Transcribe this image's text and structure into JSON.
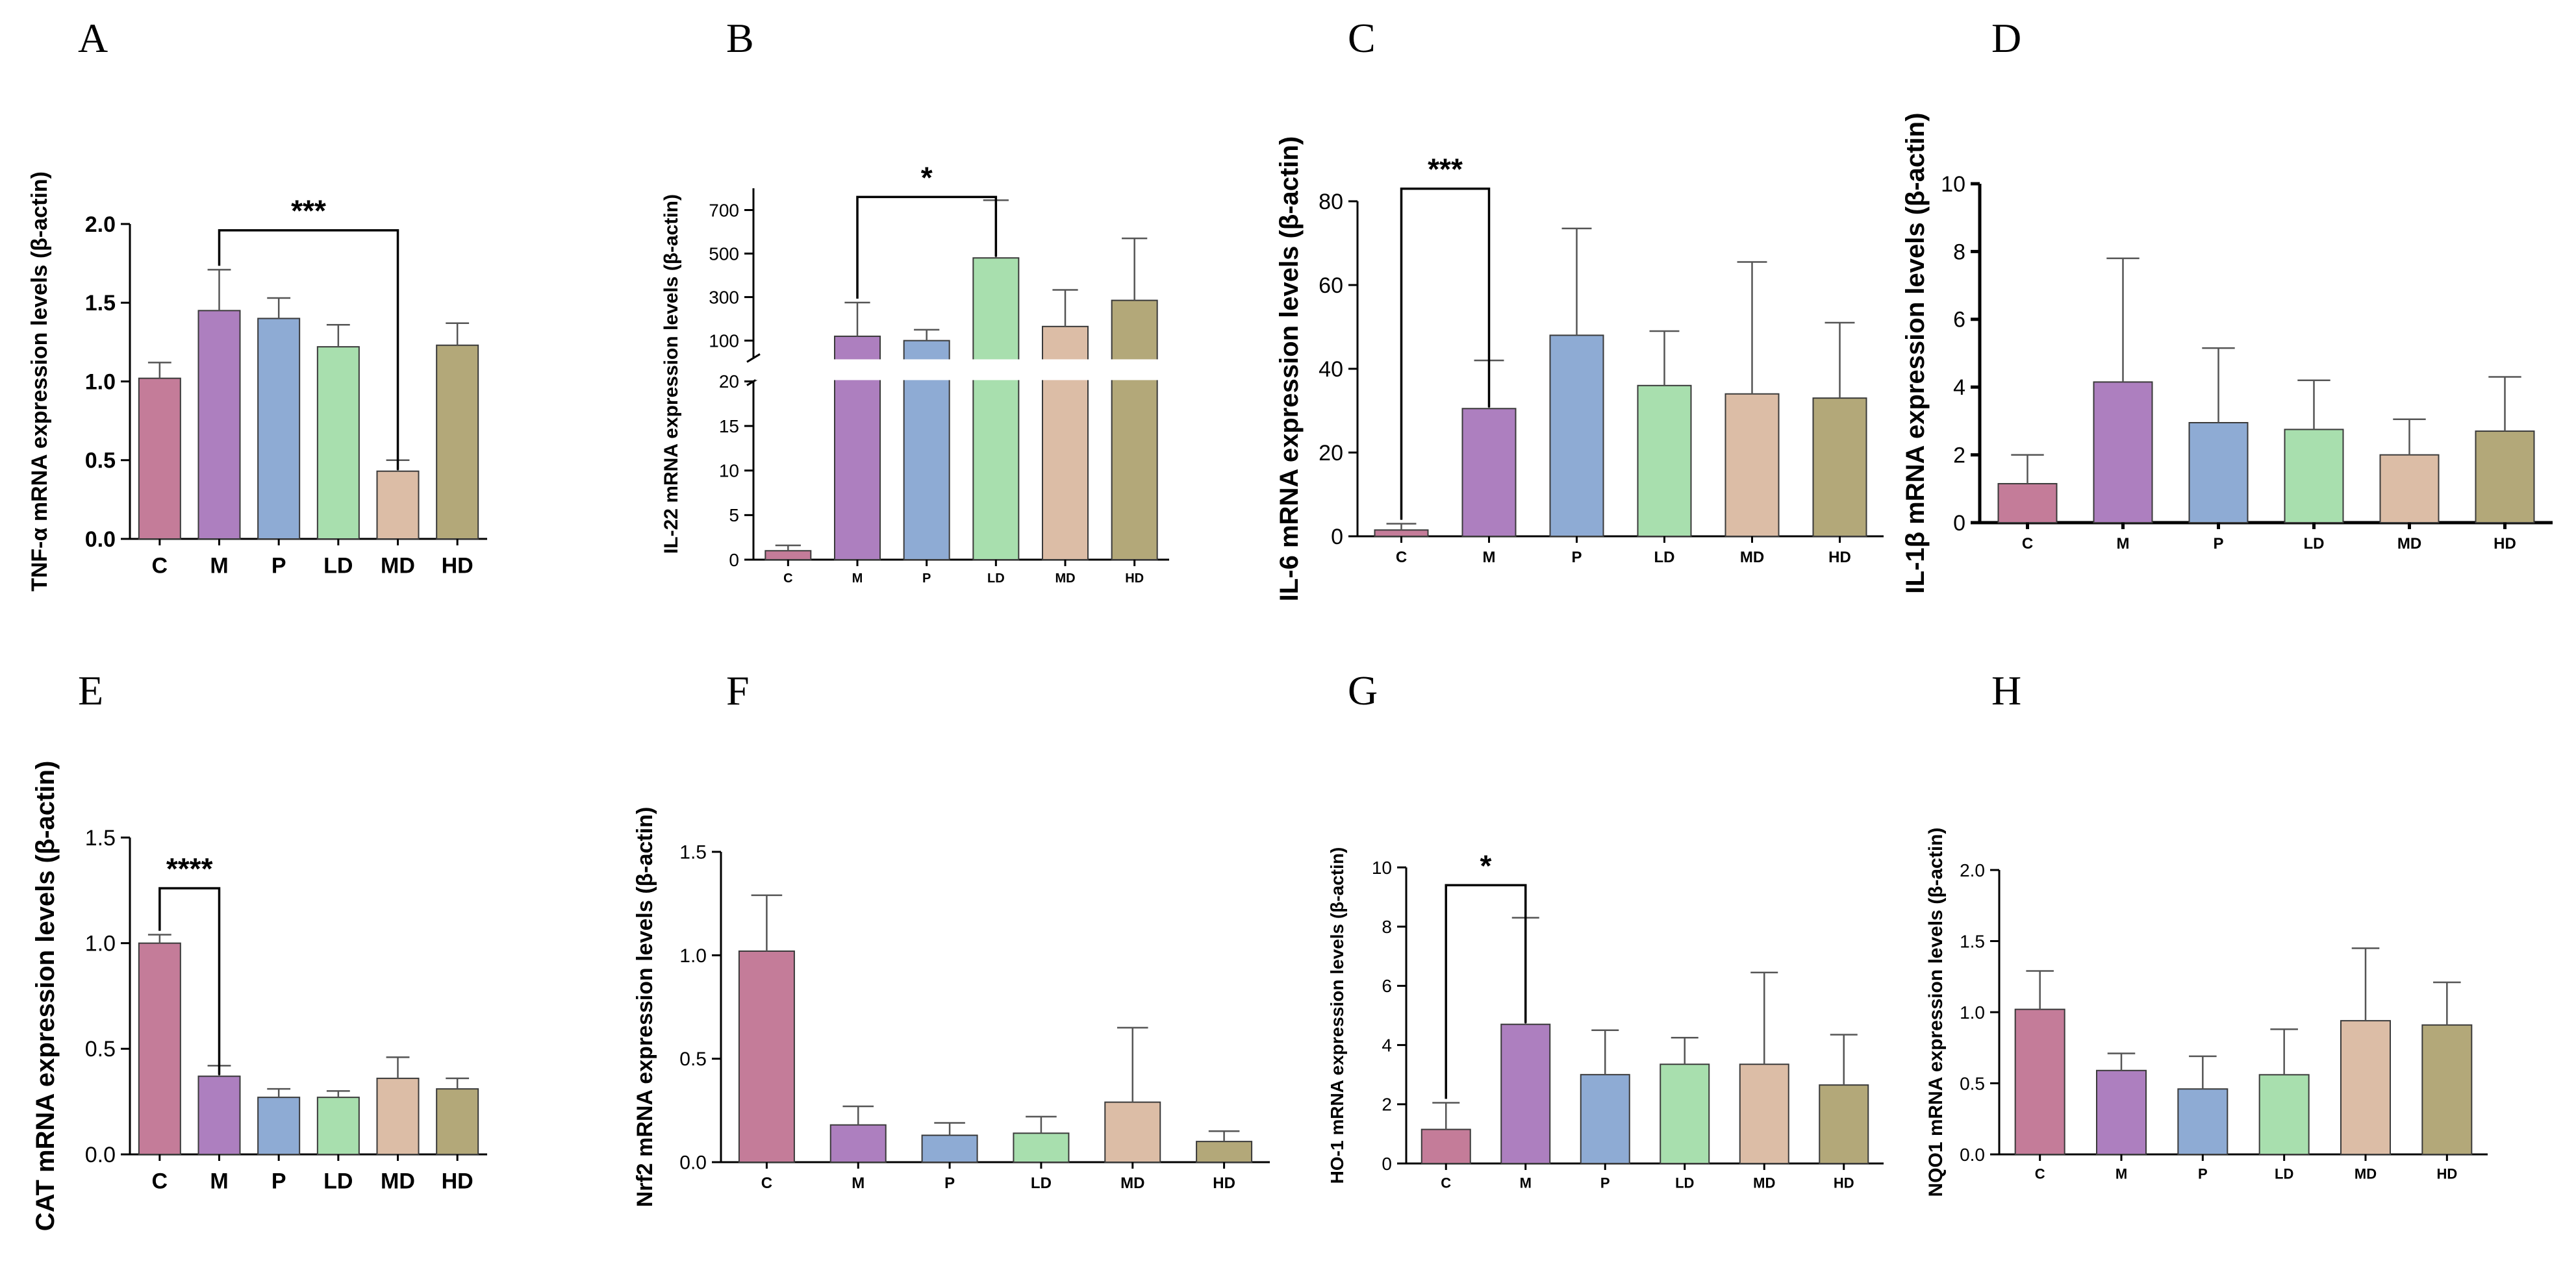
{
  "chart_data": [
    {
      "panel": "A",
      "type": "bar",
      "ylabel": "TNF-α mRNA expression levels (β-actin)",
      "categories": [
        "C",
        "M",
        "P",
        "LD",
        "MD",
        "HD"
      ],
      "values": [
        1.02,
        1.45,
        1.4,
        1.22,
        0.43,
        1.23
      ],
      "errors": [
        0.1,
        0.26,
        0.13,
        0.14,
        0.07,
        0.14
      ],
      "ylim": [
        0,
        2.0
      ],
      "yticks": [
        "0.0",
        "0.5",
        "1.0",
        "1.5",
        "2.0"
      ],
      "significance": {
        "from": 1,
        "to": 4,
        "label": "***",
        "level": 1.96
      }
    },
    {
      "panel": "B",
      "type": "bar",
      "ylabel": "IL-22 mRNA expression levels (β-actin)",
      "categories": [
        "C",
        "M",
        "P",
        "LD",
        "MD",
        "HD"
      ],
      "values": [
        1.0,
        120,
        100,
        480,
        165,
        285
      ],
      "errors": [
        0.6,
        155,
        50,
        265,
        168,
        285
      ],
      "broken_axis": {
        "lower": [
          0,
          20
        ],
        "upper": [
          20,
          800
        ]
      },
      "yticks_lower": [
        "0",
        "5",
        "10",
        "15",
        "20"
      ],
      "yticks_upper": [
        "100",
        "300",
        "500",
        "700"
      ],
      "significance": {
        "from": 1,
        "to": 3,
        "label": "*",
        "level": 760
      }
    },
    {
      "panel": "C",
      "type": "bar",
      "ylabel": "IL-6 mRNA expression levels (β-actin)",
      "categories": [
        "C",
        "M",
        "P",
        "LD",
        "MD",
        "HD"
      ],
      "values": [
        1.5,
        30.5,
        48,
        36,
        34,
        33
      ],
      "errors": [
        1.5,
        11.5,
        25.5,
        13,
        31.5,
        18
      ],
      "ylim": [
        0,
        80
      ],
      "yticks": [
        "0",
        "20",
        "40",
        "60",
        "80"
      ],
      "significance": {
        "from": 0,
        "to": 1,
        "label": "***",
        "level": 83
      }
    },
    {
      "panel": "D",
      "type": "bar",
      "ylabel": "IL-1β mRNA expression levels (β-actin)",
      "categories": [
        "C",
        "M",
        "P",
        "LD",
        "MD",
        "HD"
      ],
      "values": [
        1.15,
        4.15,
        2.95,
        2.75,
        2.0,
        2.7
      ],
      "errors": [
        0.85,
        3.65,
        2.2,
        1.45,
        1.05,
        1.6
      ],
      "ylim": [
        0,
        10
      ],
      "yticks": [
        "0",
        "2",
        "4",
        "6",
        "8",
        "10"
      ]
    },
    {
      "panel": "E",
      "type": "bar",
      "ylabel": "CAT mRNA expression levels (β-actin)",
      "categories": [
        "C",
        "M",
        "P",
        "LD",
        "MD",
        "HD"
      ],
      "values": [
        1.0,
        0.37,
        0.27,
        0.27,
        0.36,
        0.31
      ],
      "errors": [
        0.04,
        0.05,
        0.04,
        0.03,
        0.1,
        0.05
      ],
      "ylim": [
        0,
        1.5
      ],
      "yticks": [
        "0.0",
        "0.5",
        "1.0",
        "1.5"
      ],
      "significance": {
        "from": 0,
        "to": 1,
        "label": "****",
        "level": 1.26
      }
    },
    {
      "panel": "F",
      "type": "bar",
      "ylabel": "Nrf2 mRNA expression levels (β-actin)",
      "categories": [
        "C",
        "M",
        "P",
        "LD",
        "MD",
        "HD"
      ],
      "values": [
        1.02,
        0.18,
        0.13,
        0.14,
        0.29,
        0.1
      ],
      "errors": [
        0.27,
        0.09,
        0.06,
        0.08,
        0.36,
        0.05
      ],
      "ylim": [
        0,
        1.5
      ],
      "yticks": [
        "0.0",
        "0.5",
        "1.0",
        "1.5"
      ]
    },
    {
      "panel": "G",
      "type": "bar",
      "ylabel": "HO-1 mRNA expression levels (β-actin)",
      "categories": [
        "C",
        "M",
        "P",
        "LD",
        "MD",
        "HD"
      ],
      "values": [
        1.15,
        4.7,
        3.0,
        3.35,
        3.35,
        2.65
      ],
      "errors": [
        0.9,
        3.6,
        1.5,
        0.9,
        3.1,
        1.7
      ],
      "ylim": [
        0,
        10
      ],
      "yticks": [
        "0",
        "2",
        "4",
        "6",
        "8",
        "10"
      ],
      "significance": {
        "from": 0,
        "to": 1,
        "label": "*",
        "level": 9.4
      }
    },
    {
      "panel": "H",
      "type": "bar",
      "ylabel": "NQO1 mRNA expression levels (β-actin)",
      "categories": [
        "C",
        "M",
        "P",
        "LD",
        "MD",
        "HD"
      ],
      "values": [
        1.02,
        0.59,
        0.46,
        0.56,
        0.94,
        0.91
      ],
      "errors": [
        0.27,
        0.12,
        0.23,
        0.32,
        0.51,
        0.3
      ],
      "ylim": [
        0,
        2.0
      ],
      "yticks": [
        "0.0",
        "0.5",
        "1.0",
        "1.5",
        "2.0"
      ]
    }
  ],
  "bar_colors": [
    "#c47c99",
    "#ad7fbf",
    "#8eabd4",
    "#a8dfae",
    "#dcbda6",
    "#b3a879"
  ],
  "axis_color": "#000000"
}
